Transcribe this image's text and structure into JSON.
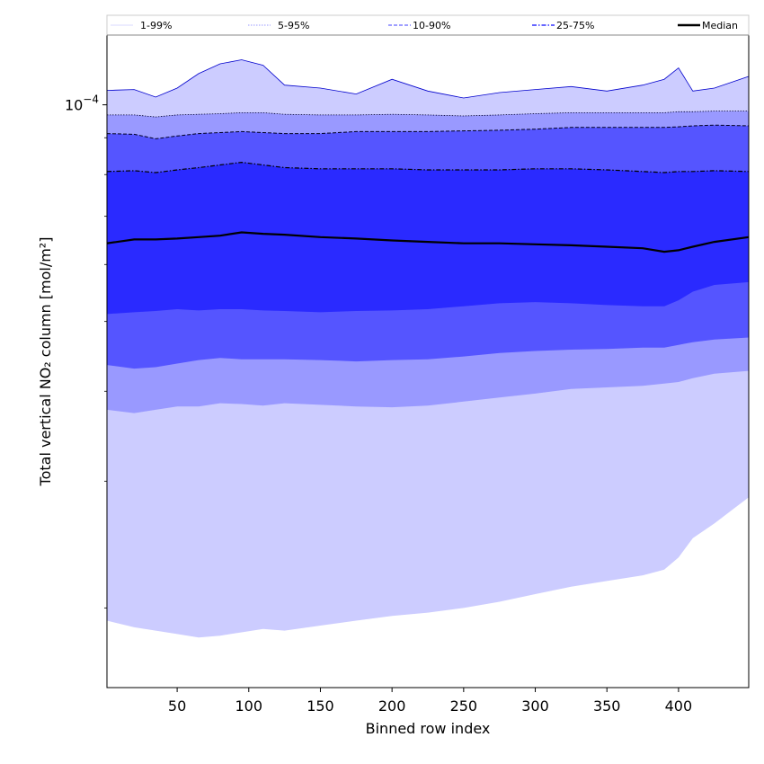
{
  "chart_data": {
    "type": "area",
    "xlabel": "Binned row index",
    "ylabel": "Total vertical NO₂ column [mol/m²]",
    "xlim": [
      1,
      449
    ],
    "ylim": [
      1.55e-05,
      0.000125
    ],
    "yscale": "log",
    "x_ticks": [
      50,
      100,
      150,
      200,
      250,
      300,
      350,
      400
    ],
    "y_major_ticks": [
      {
        "value": 0.0001,
        "base": "10",
        "exponent": "−4"
      }
    ],
    "y_minor_ticks": [
      2e-05,
      3e-05,
      4e-05,
      5e-05,
      6e-05,
      7e-05,
      8e-05,
      9e-05
    ],
    "legend": {
      "placement": "top",
      "entries": [
        {
          "label": "1-99%",
          "color": "#ccccff",
          "style": "solid-thin"
        },
        {
          "label": "5-95%",
          "color": "#9999ff",
          "style": "dotted"
        },
        {
          "label": "10-90%",
          "color": "#6666ff",
          "style": "dashed"
        },
        {
          "label": "25-75%",
          "color": "#3333ff",
          "style": "dashdot"
        },
        {
          "label": "Median",
          "color": "#000000",
          "style": "solid-thick"
        }
      ]
    },
    "colors": {
      "band_1_99": "#ccccff",
      "band_5_95": "#9999ff",
      "band_10_90": "#5555ff",
      "band_25_75": "#2a2aff",
      "median": "#000000",
      "p99_line": "#0000cc"
    },
    "x": [
      1,
      20,
      35,
      50,
      65,
      80,
      95,
      110,
      125,
      150,
      175,
      200,
      225,
      250,
      275,
      300,
      325,
      350,
      375,
      390,
      400,
      410,
      425,
      449
    ],
    "series": [
      {
        "name": "P1",
        "values": [
          1.92e-05,
          1.88e-05,
          1.86e-05,
          1.84e-05,
          1.82e-05,
          1.83e-05,
          1.85e-05,
          1.87e-05,
          1.86e-05,
          1.89e-05,
          1.92e-05,
          1.95e-05,
          1.97e-05,
          2e-05,
          2.04e-05,
          2.09e-05,
          2.14e-05,
          2.18e-05,
          2.22e-05,
          2.26e-05,
          2.35e-05,
          2.5e-05,
          2.62e-05,
          2.85e-05
        ]
      },
      {
        "name": "P5",
        "values": [
          3.77e-05,
          3.73e-05,
          3.77e-05,
          3.81e-05,
          3.81e-05,
          3.85e-05,
          3.84e-05,
          3.82e-05,
          3.85e-05,
          3.83e-05,
          3.81e-05,
          3.8e-05,
          3.82e-05,
          3.87e-05,
          3.92e-05,
          3.97e-05,
          4.03e-05,
          4.05e-05,
          4.07e-05,
          4.1e-05,
          4.12e-05,
          4.17e-05,
          4.23e-05,
          4.27e-05
        ]
      },
      {
        "name": "P10",
        "values": [
          4.35e-05,
          4.3e-05,
          4.32e-05,
          4.37e-05,
          4.42e-05,
          4.45e-05,
          4.43e-05,
          4.43e-05,
          4.43e-05,
          4.42e-05,
          4.4e-05,
          4.42e-05,
          4.43e-05,
          4.47e-05,
          4.52e-05,
          4.55e-05,
          4.57e-05,
          4.58e-05,
          4.6e-05,
          4.6e-05,
          4.64e-05,
          4.68e-05,
          4.72e-05,
          4.75e-05
        ]
      },
      {
        "name": "P25",
        "values": [
          5.12e-05,
          5.15e-05,
          5.17e-05,
          5.2e-05,
          5.18e-05,
          5.2e-05,
          5.2e-05,
          5.18e-05,
          5.17e-05,
          5.15e-05,
          5.17e-05,
          5.18e-05,
          5.2e-05,
          5.25e-05,
          5.3e-05,
          5.32e-05,
          5.3e-05,
          5.27e-05,
          5.25e-05,
          5.25e-05,
          5.35e-05,
          5.5e-05,
          5.62e-05,
          5.67e-05
        ]
      },
      {
        "name": "Median",
        "values": [
          6.42e-05,
          6.5e-05,
          6.5e-05,
          6.52e-05,
          6.55e-05,
          6.58e-05,
          6.65e-05,
          6.62e-05,
          6.6e-05,
          6.55e-05,
          6.52e-05,
          6.48e-05,
          6.45e-05,
          6.42e-05,
          6.42e-05,
          6.4e-05,
          6.38e-05,
          6.35e-05,
          6.32e-05,
          6.25e-05,
          6.28e-05,
          6.35e-05,
          6.45e-05,
          6.55e-05
        ]
      },
      {
        "name": "P75",
        "values": [
          8.08e-05,
          8.1e-05,
          8.05e-05,
          8.12e-05,
          8.18e-05,
          8.25e-05,
          8.32e-05,
          8.25e-05,
          8.18e-05,
          8.15e-05,
          8.15e-05,
          8.15e-05,
          8.12e-05,
          8.12e-05,
          8.12e-05,
          8.15e-05,
          8.15e-05,
          8.12e-05,
          8.08e-05,
          8.05e-05,
          8.08e-05,
          8.08e-05,
          8.1e-05,
          8.08e-05
        ]
      },
      {
        "name": "P90",
        "values": [
          9.12e-05,
          9.1e-05,
          8.97e-05,
          9.05e-05,
          9.12e-05,
          9.15e-05,
          9.18e-05,
          9.15e-05,
          9.12e-05,
          9.12e-05,
          9.18e-05,
          9.18e-05,
          9.18e-05,
          9.2e-05,
          9.22e-05,
          9.25e-05,
          9.3e-05,
          9.3e-05,
          9.3e-05,
          9.3e-05,
          9.32e-05,
          9.35e-05,
          9.37e-05,
          9.35e-05
        ]
      },
      {
        "name": "P95",
        "values": [
          9.68e-05,
          9.68e-05,
          9.62e-05,
          9.68e-05,
          9.7e-05,
          9.72e-05,
          9.75e-05,
          9.75e-05,
          9.7e-05,
          9.68e-05,
          9.68e-05,
          9.7e-05,
          9.68e-05,
          9.65e-05,
          9.68e-05,
          9.72e-05,
          9.75e-05,
          9.75e-05,
          9.75e-05,
          9.75e-05,
          9.78e-05,
          9.78e-05,
          9.8e-05,
          9.8e-05
        ]
      },
      {
        "name": "P99",
        "values": [
          0.0001047,
          0.000105,
          0.0001025,
          0.0001055,
          0.0001105,
          0.000114,
          0.0001155,
          0.0001135,
          0.0001065,
          0.0001055,
          0.0001035,
          0.0001085,
          0.0001045,
          0.0001022,
          0.000104,
          0.000105,
          0.000106,
          0.0001045,
          0.0001065,
          0.0001085,
          0.0001125,
          0.0001045,
          0.0001055,
          0.0001095
        ]
      }
    ]
  }
}
